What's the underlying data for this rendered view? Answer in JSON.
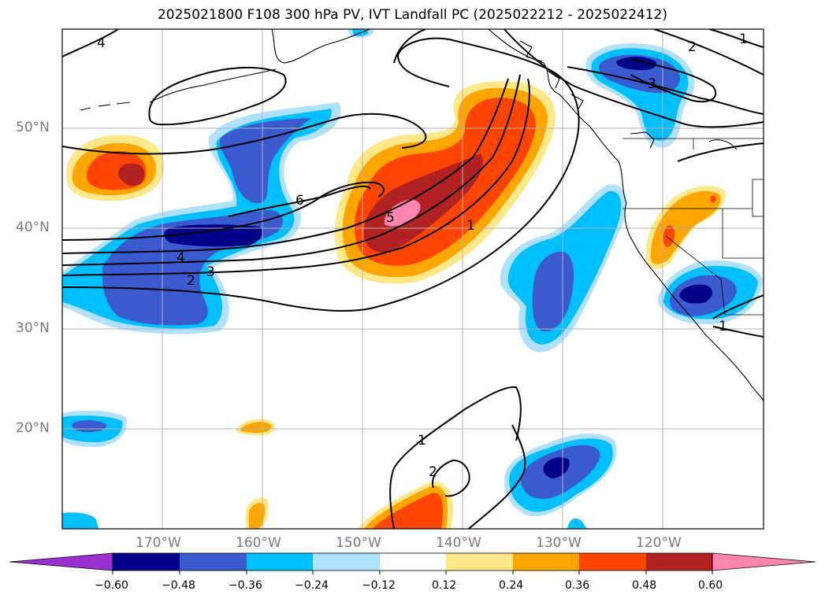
{
  "title": "2025021800 F108 300 hPa PV, IVT Landfall PC (2025022212 - 2025022412)",
  "lat_ticks": [
    "50°N",
    "40°N",
    "30°N",
    "20°N"
  ],
  "lon_ticks": [
    "170°W",
    "160°W",
    "150°W",
    "140°W",
    "130°W",
    "120°W"
  ],
  "colorbar": {
    "tick_labels": [
      "−0.60",
      "−0.48",
      "−0.36",
      "−0.24",
      "−0.12",
      "0.12",
      "0.24",
      "0.36",
      "0.48",
      "0.60"
    ],
    "colors": [
      "#9a30d0",
      "#00008b",
      "#3a5bd0",
      "#00bfff",
      "#b0e2ff",
      "#ffffff",
      "#ffe88a",
      "#ffa500",
      "#ff4500",
      "#b22222",
      "#ff85b0"
    ]
  },
  "contour_labels": [
    "4",
    "2",
    "1",
    "3",
    "6",
    "4",
    "3",
    "2",
    "5",
    "1",
    "1",
    "2",
    "1"
  ],
  "legend_colors": {
    "coast": "#000000",
    "grid": "#b0b0b0"
  }
}
